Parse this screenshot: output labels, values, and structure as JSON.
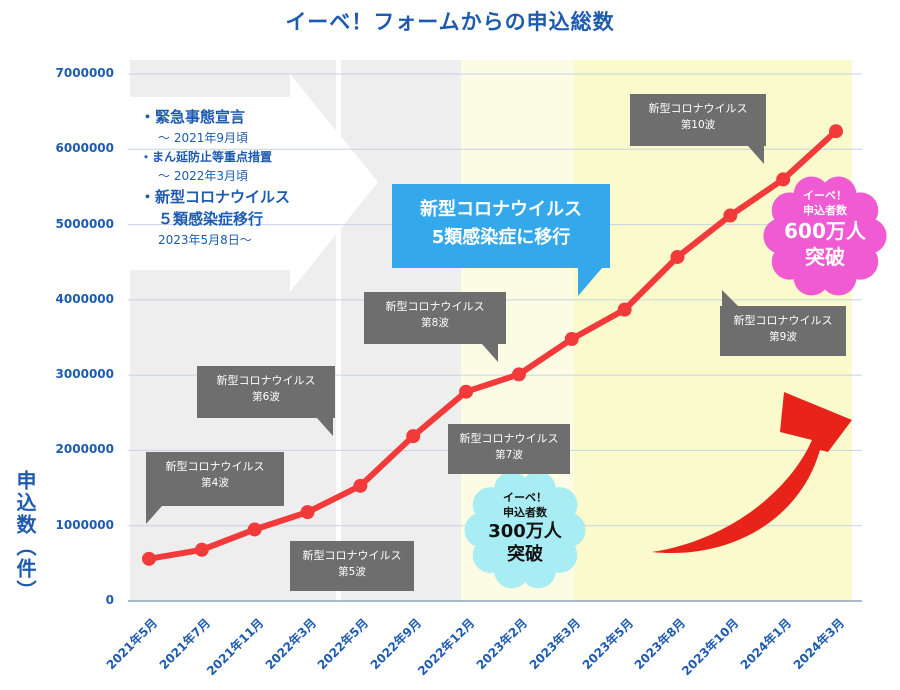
{
  "chart_data": {
    "type": "line",
    "title": "イーベ！フォームからの申込総数",
    "ylabel": "申込数（件）",
    "ylim": [
      0,
      7000000
    ],
    "yticks": [
      "7000000",
      "6000000",
      "5000000",
      "4000000",
      "3000000",
      "2000000",
      "1000000",
      "0"
    ],
    "categories": [
      "2021年5月",
      "2021年7月",
      "2021年11月",
      "2022年3月",
      "2022年5月",
      "2022年9月",
      "2022年12月",
      "2023年2月",
      "2023年3月",
      "2023年5月",
      "2023年8月",
      "2023年10月",
      "2024年1月",
      "2024年3月"
    ],
    "values": [
      560000,
      680000,
      950000,
      1180000,
      1530000,
      2190000,
      2780000,
      3010000,
      3480000,
      3870000,
      4570000,
      5120000,
      5600000,
      6240000
    ],
    "line_color": "#f23a3a",
    "annotations": {
      "notes": {
        "l1": "・緊急事態宣言",
        "l2": "〜 2021年9月頃",
        "l3": "・まん延防止等重点措置",
        "l4": "〜 2022年3月頃",
        "l5": "・新型コロナウイルス",
        "l6": "５類感染症移行",
        "l7": "2023年5月8日〜"
      },
      "blue_box": {
        "line1": "新型コロナウイルス",
        "line2": "5類感染症に移行"
      },
      "waves": [
        {
          "id": "w4",
          "line1": "新型コロナウイルス",
          "line2": "第4波"
        },
        {
          "id": "w5",
          "line1": "新型コロナウイルス",
          "line2": "第5波"
        },
        {
          "id": "w6",
          "line1": "新型コロナウイルス",
          "line2": "第6波"
        },
        {
          "id": "w7",
          "line1": "新型コロナウイルス",
          "line2": "第7波"
        },
        {
          "id": "w8",
          "line1": "新型コロナウイルス",
          "line2": "第8波"
        },
        {
          "id": "w9",
          "line1": "新型コロナウイルス",
          "line2": "第9波"
        },
        {
          "id": "w10",
          "line1": "新型コロナウイルス",
          "line2": "第10波"
        }
      ],
      "badge_300": {
        "line1": "イーベ！",
        "line2": "申込者数",
        "line3": "300万人",
        "line4": "突破",
        "color": "#a8ecf4"
      },
      "badge_600": {
        "line1": "イーベ！",
        "line2": "申込者数",
        "line3": "600万人",
        "line4": "突破",
        "color": "#f05ad2"
      }
    },
    "colors": {
      "title": "#1e5bb0",
      "gray_band": "#eeeeee",
      "yellow_light": "#fcfce4",
      "yellow": "#fafacc",
      "callout": "#6e6e6e",
      "arrow": "#e8231a"
    }
  }
}
